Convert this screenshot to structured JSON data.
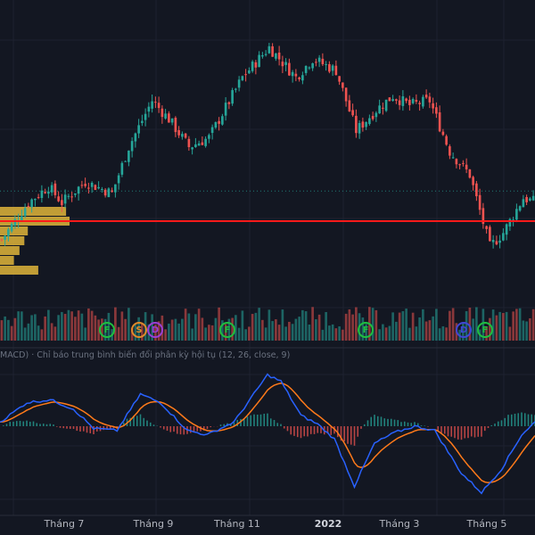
{
  "colors": {
    "background": "#131722",
    "grid": "#1e2230",
    "up": "#26a69a",
    "down": "#ef5350",
    "macd_line": "#2962ff",
    "signal_line": "#ff7a1a",
    "support_line": "#ff1a1a",
    "volume_profile": "#e0b53a",
    "badge_green": "#1fbf3f",
    "badge_blue": "#3f47d6",
    "badge_orange": "#e08a2a",
    "badge_purple": "#9b3fd6"
  },
  "indicator": {
    "title": "MACD) · Chỉ báo trung bình biến đổi phân kỳ hội tụ (12, 26, close, 9)"
  },
  "events": [
    {
      "label": "F",
      "color": "badge_green"
    },
    {
      "label": "S",
      "color": "badge_orange"
    },
    {
      "label": "D",
      "color": "badge_purple"
    },
    {
      "label": "F",
      "color": "badge_green"
    },
    {
      "label": "F",
      "color": "badge_green"
    },
    {
      "label": "D",
      "color": "badge_blue"
    },
    {
      "label": "F",
      "color": "badge_green"
    }
  ],
  "chart_data": {
    "type": "candlestick",
    "x_labels": [
      "Tháng 7",
      "Tháng 9",
      "Tháng 11",
      "2022",
      "Tháng 3",
      "Tháng 5"
    ],
    "x_labels_bold": [
      "2022"
    ],
    "price_trend": [
      [
        0,
        0.12
      ],
      [
        8,
        0.28
      ],
      [
        14,
        0.35
      ],
      [
        18,
        0.28
      ],
      [
        25,
        0.37
      ],
      [
        33,
        0.32
      ],
      [
        38,
        0.52
      ],
      [
        45,
        0.72
      ],
      [
        50,
        0.64
      ],
      [
        56,
        0.52
      ],
      [
        62,
        0.56
      ],
      [
        72,
        0.82
      ],
      [
        80,
        0.95
      ],
      [
        88,
        0.82
      ],
      [
        93,
        0.9
      ],
      [
        100,
        0.85
      ],
      [
        106,
        0.59
      ],
      [
        112,
        0.68
      ],
      [
        117,
        0.74
      ],
      [
        122,
        0.7
      ],
      [
        128,
        0.72
      ],
      [
        134,
        0.5
      ],
      [
        140,
        0.4
      ],
      [
        146,
        0.09
      ],
      [
        150,
        0.15
      ],
      [
        156,
        0.3
      ],
      [
        160,
        0.28
      ]
    ],
    "volume_profile": [
      0.95,
      1.0,
      0.4,
      0.35,
      0.28,
      0.2,
      0.55
    ],
    "support_level": 0.2,
    "dotted_level": 0.33,
    "macd_trend": [
      [
        0,
        0.1
      ],
      [
        8,
        0.55
      ],
      [
        15,
        0.62
      ],
      [
        22,
        0.4
      ],
      [
        28,
        -0.05
      ],
      [
        35,
        -0.1
      ],
      [
        42,
        0.75
      ],
      [
        48,
        0.55
      ],
      [
        56,
        -0.1
      ],
      [
        62,
        -0.2
      ],
      [
        70,
        0.1
      ],
      [
        80,
        1.2
      ],
      [
        84,
        1.05
      ],
      [
        90,
        0.25
      ],
      [
        95,
        0.05
      ],
      [
        100,
        -0.3
      ],
      [
        106,
        -1.4
      ],
      [
        112,
        -0.4
      ],
      [
        118,
        -0.15
      ],
      [
        124,
        0.0
      ],
      [
        130,
        -0.1
      ],
      [
        134,
        -0.6
      ],
      [
        138,
        -1.1
      ],
      [
        144,
        -1.55
      ],
      [
        150,
        -1.0
      ],
      [
        156,
        -0.2
      ],
      [
        160,
        0.1
      ]
    ]
  }
}
